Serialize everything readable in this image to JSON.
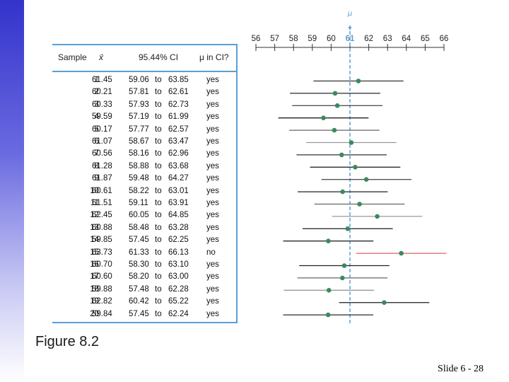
{
  "colors": {
    "sidebar": "#3333cc",
    "accent": "#5a9fd6",
    "dot": "#3a8a5e",
    "miss": "#e06060"
  },
  "table": {
    "headers": {
      "sample": "Sample",
      "xbar": "x̄",
      "ci": "95.44% CI",
      "mu_in": "μ in CI?"
    },
    "rows": [
      {
        "n": "1",
        "x": "61.45",
        "lo": "59.06",
        "to": "to",
        "hi": "63.85",
        "in": "yes"
      },
      {
        "n": "2",
        "x": "60.21",
        "lo": "57.81",
        "to": "to",
        "hi": "62.61",
        "in": "yes"
      },
      {
        "n": "3",
        "x": "60.33",
        "lo": "57.93",
        "to": "to",
        "hi": "62.73",
        "in": "yes"
      },
      {
        "n": "4",
        "x": "59.59",
        "lo": "57.19",
        "to": "to",
        "hi": "61.99",
        "in": "yes"
      },
      {
        "n": "5",
        "x": "60.17",
        "lo": "57.77",
        "to": "to",
        "hi": "62.57",
        "in": "yes"
      },
      {
        "n": "6",
        "x": "61.07",
        "lo": "58.67",
        "to": "to",
        "hi": "63.47",
        "in": "yes"
      },
      {
        "n": "7",
        "x": "60.56",
        "lo": "58.16",
        "to": "to",
        "hi": "62.96",
        "in": "yes"
      },
      {
        "n": "8",
        "x": "61.28",
        "lo": "58.88",
        "to": "to",
        "hi": "63.68",
        "in": "yes"
      },
      {
        "n": "9",
        "x": "61.87",
        "lo": "59.48",
        "to": "to",
        "hi": "64.27",
        "in": "yes"
      },
      {
        "n": "10",
        "x": "60.61",
        "lo": "58.22",
        "to": "to",
        "hi": "63.01",
        "in": "yes"
      },
      {
        "n": "11",
        "x": "61.51",
        "lo": "59.11",
        "to": "to",
        "hi": "63.91",
        "in": "yes"
      },
      {
        "n": "12",
        "x": "62.45",
        "lo": "60.05",
        "to": "to",
        "hi": "64.85",
        "in": "yes"
      },
      {
        "n": "13",
        "x": "60.88",
        "lo": "58.48",
        "to": "to",
        "hi": "63.28",
        "in": "yes"
      },
      {
        "n": "14",
        "x": "59.85",
        "lo": "57.45",
        "to": "to",
        "hi": "62.25",
        "in": "yes"
      },
      {
        "n": "15",
        "x": "63.73",
        "lo": "61.33",
        "to": "to",
        "hi": "66.13",
        "in": "no"
      },
      {
        "n": "16",
        "x": "60.70",
        "lo": "58.30",
        "to": "to",
        "hi": "63.10",
        "in": "yes"
      },
      {
        "n": "17",
        "x": "60.60",
        "lo": "58.20",
        "to": "to",
        "hi": "63.00",
        "in": "yes"
      },
      {
        "n": "18",
        "x": "59.88",
        "lo": "57.48",
        "to": "to",
        "hi": "62.28",
        "in": "yes"
      },
      {
        "n": "19",
        "x": "62.82",
        "lo": "60.42",
        "to": "to",
        "hi": "65.22",
        "in": "yes"
      },
      {
        "n": "20",
        "x": "59.84",
        "lo": "57.45",
        "to": "to",
        "hi": "62.24",
        "in": "yes"
      }
    ]
  },
  "chart_data": {
    "type": "interval",
    "mu_label": "μ",
    "mu": 61,
    "xlim": [
      56,
      66
    ],
    "ticks": [
      "56",
      "57",
      "58",
      "59",
      "60",
      "61",
      "62",
      "63",
      "64",
      "65",
      "66"
    ],
    "highlight_tick": "61",
    "samples": [
      {
        "x": 61.45,
        "lo": 59.06,
        "hi": 63.85
      },
      {
        "x": 60.21,
        "lo": 57.81,
        "hi": 62.61
      },
      {
        "x": 60.33,
        "lo": 57.93,
        "hi": 62.73
      },
      {
        "x": 59.59,
        "lo": 57.19,
        "hi": 61.99
      },
      {
        "x": 60.17,
        "lo": 57.77,
        "hi": 62.57
      },
      {
        "x": 61.07,
        "lo": 58.67,
        "hi": 63.47
      },
      {
        "x": 60.56,
        "lo": 58.16,
        "hi": 62.96
      },
      {
        "x": 61.28,
        "lo": 58.88,
        "hi": 63.68
      },
      {
        "x": 61.87,
        "lo": 59.48,
        "hi": 64.27
      },
      {
        "x": 60.61,
        "lo": 58.22,
        "hi": 63.01
      },
      {
        "x": 61.51,
        "lo": 59.11,
        "hi": 63.91
      },
      {
        "x": 62.45,
        "lo": 60.05,
        "hi": 64.85
      },
      {
        "x": 60.88,
        "lo": 58.48,
        "hi": 63.28
      },
      {
        "x": 59.85,
        "lo": 57.45,
        "hi": 62.25
      },
      {
        "x": 63.73,
        "lo": 61.33,
        "hi": 66.13
      },
      {
        "x": 60.7,
        "lo": 58.3,
        "hi": 63.1
      },
      {
        "x": 60.6,
        "lo": 58.2,
        "hi": 63.0
      },
      {
        "x": 59.88,
        "lo": 57.48,
        "hi": 62.28
      },
      {
        "x": 62.82,
        "lo": 60.42,
        "hi": 65.22
      },
      {
        "x": 59.84,
        "lo": 57.45,
        "hi": 62.24
      }
    ]
  },
  "figure_label": "Figure 8.2",
  "slide_number": "Slide 6 - 28"
}
